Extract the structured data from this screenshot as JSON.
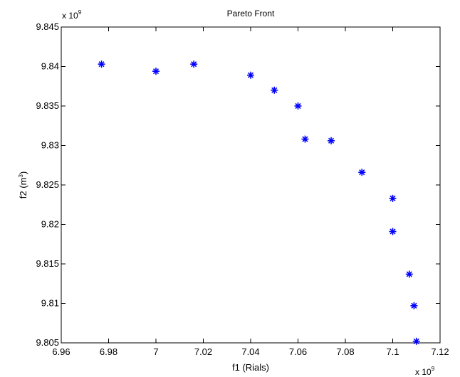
{
  "chart_data": {
    "type": "scatter",
    "title": "Pareto Front",
    "xlabel": "f1 (Rials)",
    "ylabel_main": "f2 (m",
    "ylabel_sup": "3",
    "ylabel_close": ")",
    "x_multiplier_base": "x 10",
    "x_multiplier_exp": "9",
    "y_multiplier_base": "x 10",
    "y_multiplier_exp": "9",
    "xlim": [
      6.96,
      7.12
    ],
    "ylim": [
      9.805,
      9.845
    ],
    "xticks": [
      6.96,
      6.98,
      7.0,
      7.02,
      7.04,
      7.06,
      7.08,
      7.1,
      7.12
    ],
    "xtick_labels": [
      "6.96",
      "6.98",
      "7",
      "7.02",
      "7.04",
      "7.06",
      "7.08",
      "7.1",
      "7.12"
    ],
    "yticks": [
      9.805,
      9.81,
      9.815,
      9.82,
      9.825,
      9.83,
      9.835,
      9.84,
      9.845
    ],
    "ytick_labels": [
      "9.805",
      "9.81",
      "9.815",
      "9.82",
      "9.825",
      "9.83",
      "9.835",
      "9.84",
      "9.845"
    ],
    "grid": false,
    "marker": "asterisk",
    "color": "#0000ff",
    "series": [
      {
        "x": [
          6.977,
          7.0,
          7.016,
          7.04,
          7.05,
          7.06,
          7.063,
          7.074,
          7.087,
          7.1,
          7.1,
          7.107,
          7.109,
          7.11
        ],
        "y": [
          9.8403,
          9.8394,
          9.8403,
          9.8389,
          9.837,
          9.835,
          9.8308,
          9.8306,
          9.8266,
          9.8233,
          9.8191,
          9.8137,
          9.8097,
          9.8052
        ]
      }
    ]
  }
}
